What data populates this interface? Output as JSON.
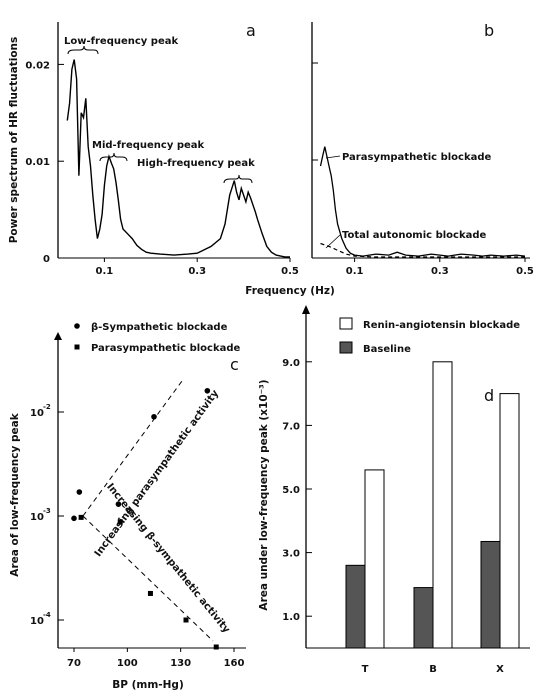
{
  "chart_data": [
    {
      "panel": "a",
      "type": "line",
      "ylabel": "Power spectrum of HR fluctuations",
      "xlim": [
        0,
        0.5
      ],
      "ylim": [
        0,
        0.025
      ],
      "x_ticks": [
        "0.1",
        "0.3",
        "0.5"
      ],
      "y_ticks": [
        "0",
        "0.01",
        "0.02"
      ],
      "annotations": [
        "Low-frequency peak",
        "Mid-frequency peak",
        "High-frequency peak"
      ],
      "series": [
        {
          "x": [
            0.02,
            0.025,
            0.03,
            0.035,
            0.04,
            0.045,
            0.05,
            0.055,
            0.06,
            0.065,
            0.07,
            0.075,
            0.08,
            0.085,
            0.09,
            0.095,
            0.1,
            0.105,
            0.11,
            0.115,
            0.12,
            0.125,
            0.13,
            0.135,
            0.14,
            0.15,
            0.16,
            0.17,
            0.18,
            0.19,
            0.2,
            0.22,
            0.25,
            0.28,
            0.3,
            0.33,
            0.35,
            0.36,
            0.37,
            0.38,
            0.385,
            0.39,
            0.395,
            0.4,
            0.405,
            0.41,
            0.415,
            0.42,
            0.425,
            0.43,
            0.44,
            0.45,
            0.46,
            0.47,
            0.48,
            0.49,
            0.5
          ],
          "y": [
            0.0142,
            0.016,
            0.0195,
            0.0205,
            0.0185,
            0.0085,
            0.015,
            0.0145,
            0.0165,
            0.0115,
            0.0095,
            0.0065,
            0.004,
            0.002,
            0.003,
            0.0045,
            0.0075,
            0.0095,
            0.0105,
            0.0098,
            0.0092,
            0.0078,
            0.006,
            0.004,
            0.003,
            0.0025,
            0.002,
            0.0013,
            0.0009,
            0.0006,
            0.0005,
            0.0004,
            0.0003,
            0.0004,
            0.0005,
            0.0012,
            0.002,
            0.0035,
            0.0065,
            0.008,
            0.0068,
            0.006,
            0.0072,
            0.0065,
            0.0058,
            0.0068,
            0.0062,
            0.0055,
            0.0048,
            0.004,
            0.0025,
            0.0012,
            0.0006,
            0.0003,
            0.0002,
            0.0001,
            0.0001
          ]
        }
      ]
    },
    {
      "panel": "b",
      "type": "line",
      "xlabel": "Frequency (Hz)",
      "xlim": [
        0,
        0.5
      ],
      "ylim": [
        0,
        0.025
      ],
      "x_ticks": [
        "0.1",
        "0.3",
        "0.5"
      ],
      "annotations": [
        "Parasympathetic blockade",
        "Total autonomic blockade"
      ],
      "series": [
        {
          "x": [
            0.02,
            0.025,
            0.03,
            0.035,
            0.04,
            0.045,
            0.05,
            0.055,
            0.06,
            0.07,
            0.08,
            0.09,
            0.1,
            0.12,
            0.15,
            0.18,
            0.2,
            0.22,
            0.25,
            0.28,
            0.3,
            0.32,
            0.35,
            0.38,
            0.4,
            0.42,
            0.45,
            0.48,
            0.5
          ],
          "y": [
            0.0095,
            0.0105,
            0.0115,
            0.0105,
            0.0095,
            0.0085,
            0.007,
            0.005,
            0.0035,
            0.002,
            0.001,
            0.0005,
            0.0003,
            0.0002,
            0.0004,
            0.0003,
            0.0006,
            0.0003,
            0.0002,
            0.0004,
            0.0003,
            0.0002,
            0.0004,
            0.0003,
            0.0002,
            0.0003,
            0.0002,
            0.0003,
            0.0002
          ]
        },
        {
          "style": "dashed",
          "x": [
            0.02,
            0.04,
            0.06,
            0.08,
            0.1,
            0.15,
            0.2,
            0.3,
            0.4,
            0.5
          ],
          "y": [
            0.0015,
            0.0012,
            0.0008,
            0.0004,
            0.0002,
            0.0001,
            0.0001,
            0.0001,
            0.0001,
            0.0001
          ]
        }
      ]
    },
    {
      "panel": "c",
      "type": "scatter",
      "xlabel": "BP (mm-Hg)",
      "ylabel": "Area of low-frequency peak",
      "xlim": [
        65,
        170
      ],
      "ylim_log10": [
        -4.5,
        -1.2
      ],
      "x_ticks": [
        "70",
        "100",
        "130",
        "160"
      ],
      "y_ticks": [
        "10",
        "10",
        "10"
      ],
      "y_tick_exponents": [
        "-2",
        "-3",
        "-4"
      ],
      "annotations": [
        "Increasing parasympathetic activity",
        "Increasing β-sympathetic activity"
      ],
      "series": [
        {
          "name": "β-Sympathetic blockade",
          "marker": "circle",
          "x": [
            73,
            95,
            115,
            145,
            70
          ],
          "y": [
            0.0017,
            0.0013,
            0.009,
            0.016,
            0.00095
          ]
        },
        {
          "name": "Parasympathetic blockade",
          "marker": "square",
          "x": [
            74,
            96,
            113,
            133,
            150
          ],
          "y": [
            0.00097,
            0.00088,
            0.00018,
            0.0001,
            5.5e-05
          ]
        }
      ]
    },
    {
      "panel": "d",
      "type": "bar",
      "ylabel": "Area under low-frequency peak (x10⁻³)",
      "categories": [
        "T",
        "B",
        "X"
      ],
      "ylim": [
        0,
        10
      ],
      "y_ticks": [
        "1.0",
        "3.0",
        "5.0",
        "7.0",
        "9.0"
      ],
      "series": [
        {
          "name": "Baseline",
          "values": [
            2.6,
            1.9,
            3.35
          ]
        },
        {
          "name": "Renin-angiotensin blockade",
          "values": [
            5.6,
            9.0,
            8.0
          ]
        }
      ]
    }
  ]
}
